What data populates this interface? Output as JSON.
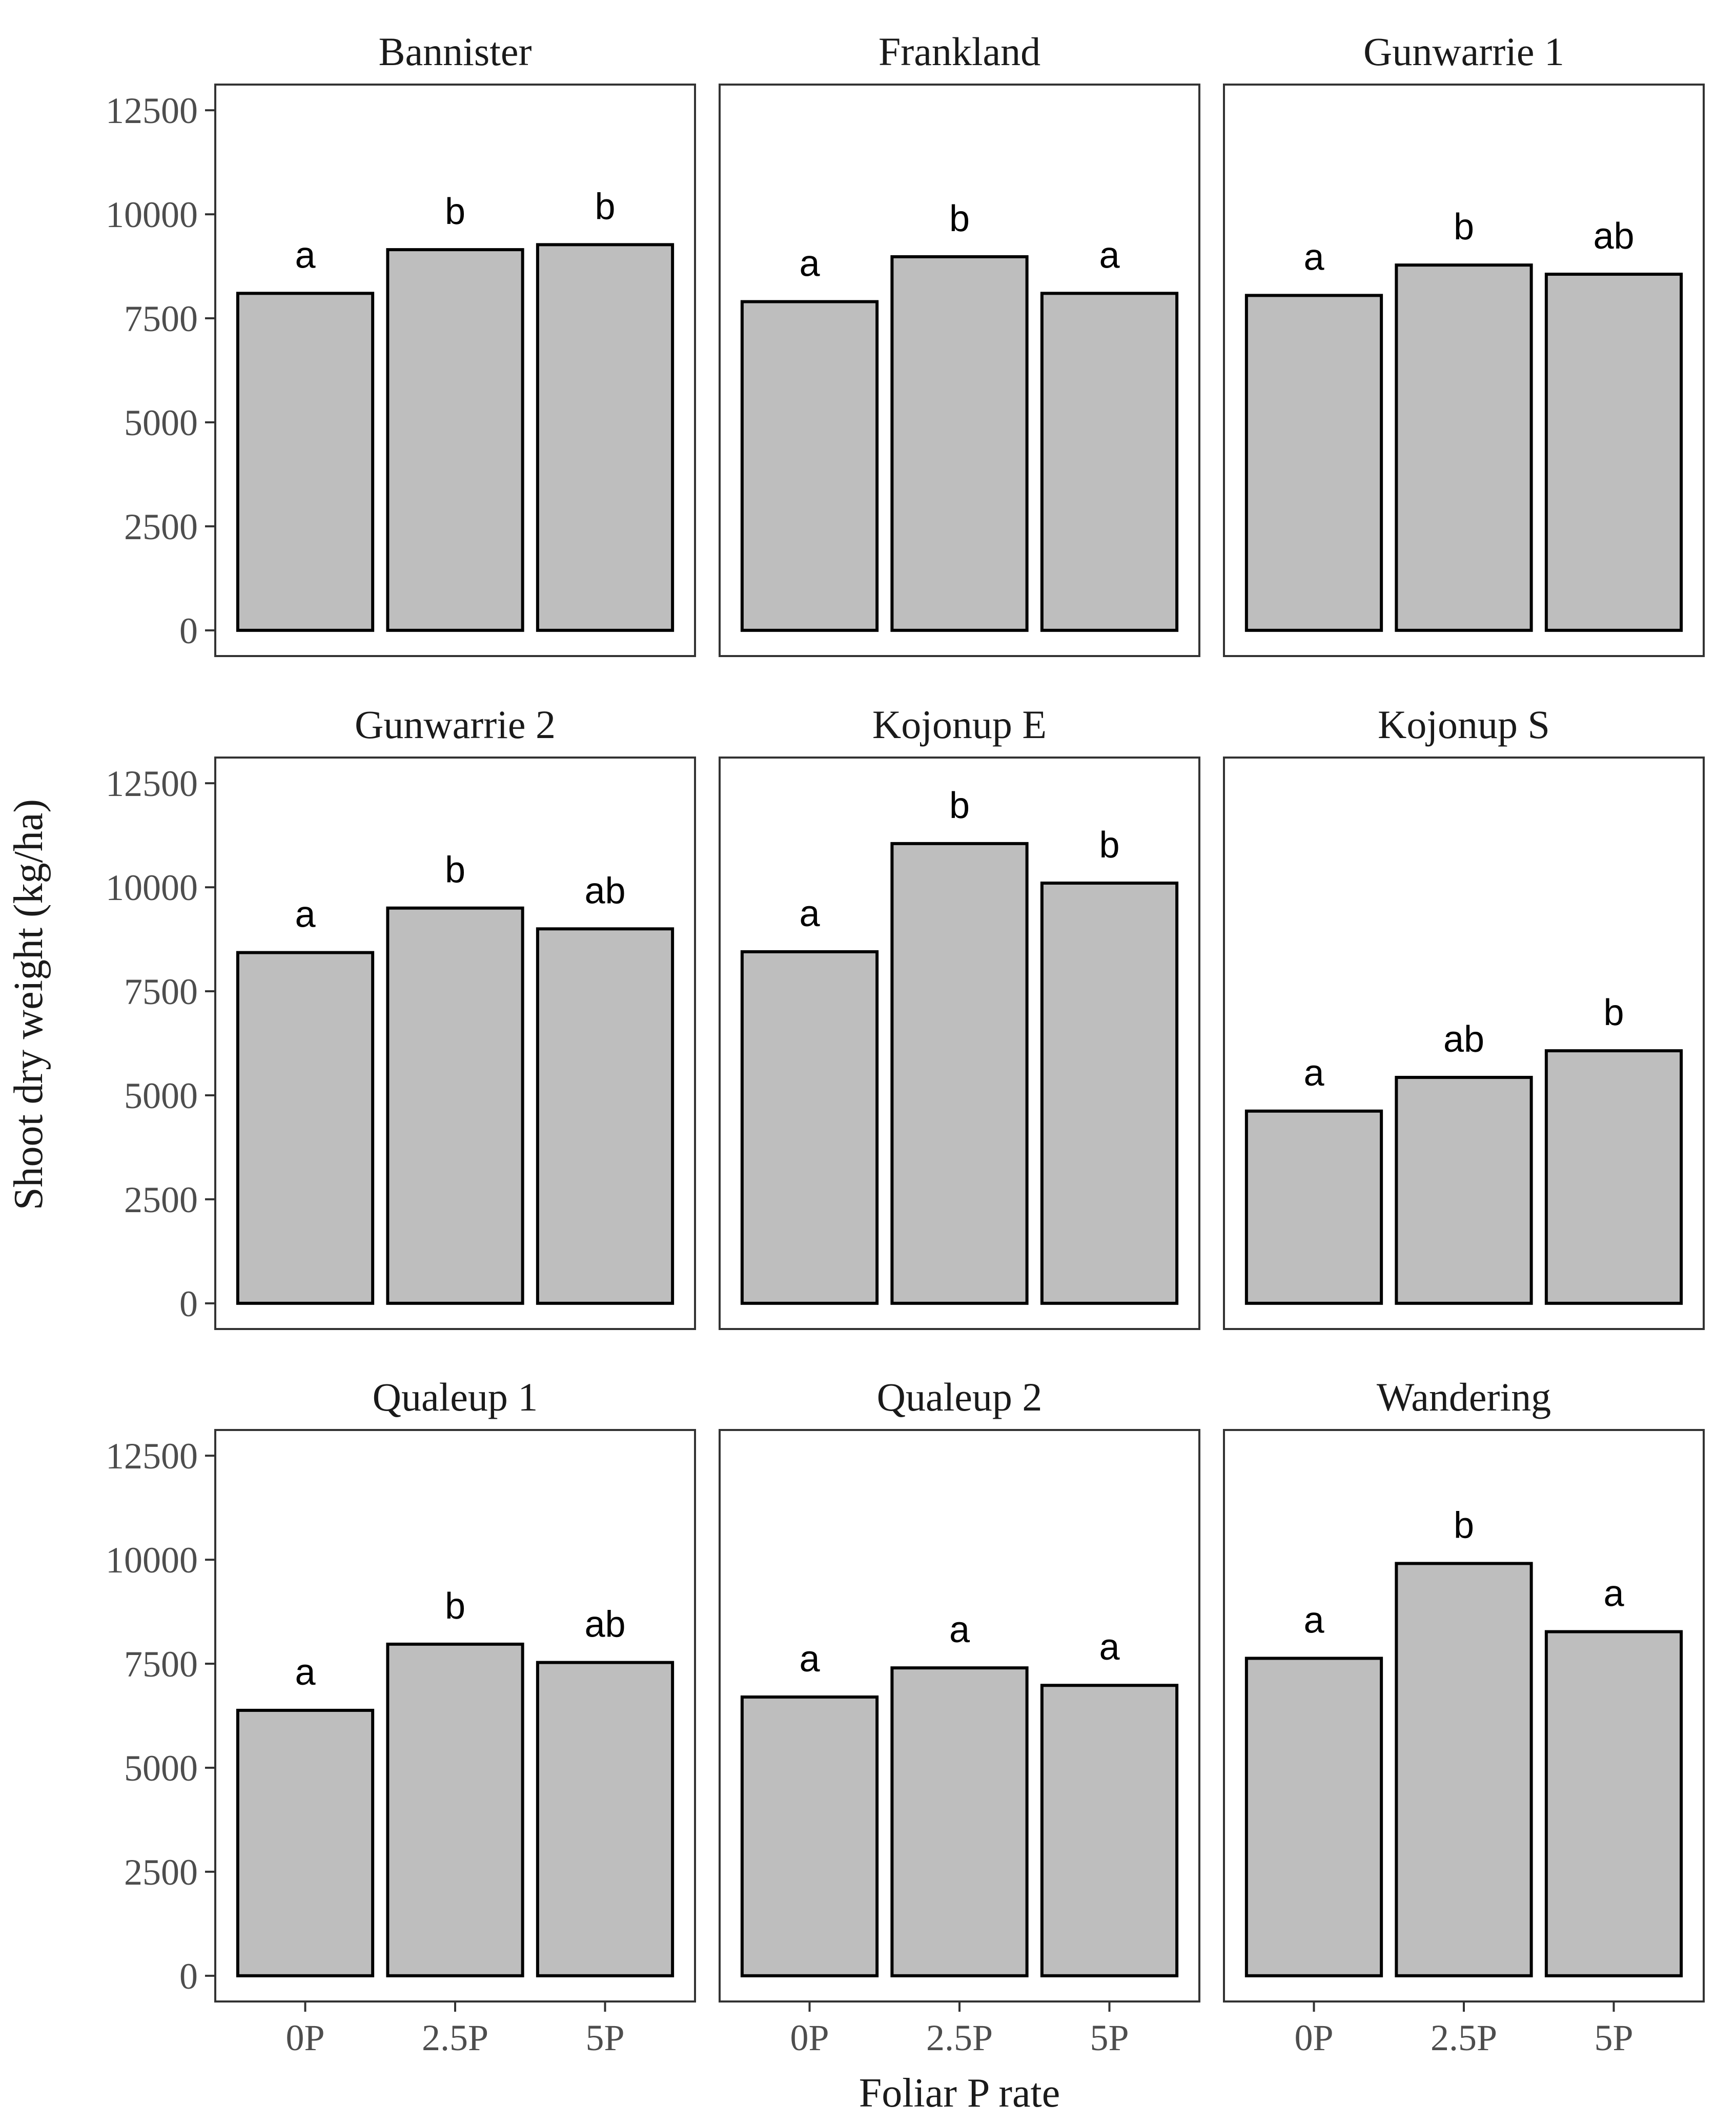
{
  "chart_data": {
    "type": "bar",
    "xlabel": "Foliar P rate",
    "ylabel": "Shoot dry weight (kg/ha)",
    "categories": [
      "0P",
      "2.5P",
      "5P"
    ],
    "ylim": [
      0,
      12500
    ],
    "yticks": [
      0,
      2500,
      5000,
      7500,
      10000,
      12500
    ],
    "ytick_labels": [
      "0",
      "2500",
      "5000",
      "7500",
      "10000",
      "12500"
    ],
    "bar_color": "#bebebe",
    "facets": [
      {
        "title": "Bannister",
        "values": [
          8100,
          9150,
          9270
        ],
        "labels": [
          "a",
          "b",
          "b"
        ]
      },
      {
        "title": "Frankland",
        "values": [
          7900,
          8980,
          8100
        ],
        "labels": [
          "a",
          "b",
          "a"
        ]
      },
      {
        "title": "Gunwarrie 1",
        "values": [
          8050,
          8780,
          8560
        ],
        "labels": [
          "a",
          "b",
          "ab"
        ]
      },
      {
        "title": "Gunwarrie 2",
        "values": [
          8430,
          9500,
          9000
        ],
        "labels": [
          "a",
          "b",
          "ab"
        ]
      },
      {
        "title": "Kojonup E",
        "values": [
          8450,
          11050,
          10100
        ],
        "labels": [
          "a",
          "b",
          "b"
        ]
      },
      {
        "title": "Kojonup S",
        "values": [
          4620,
          5430,
          6070
        ],
        "labels": [
          "a",
          "ab",
          "b"
        ]
      },
      {
        "title": "Qualeup 1",
        "values": [
          6380,
          7970,
          7530
        ],
        "labels": [
          "a",
          "b",
          "ab"
        ]
      },
      {
        "title": "Qualeup 2",
        "values": [
          6700,
          7400,
          6980
        ],
        "labels": [
          "a",
          "a",
          "a"
        ]
      },
      {
        "title": "Wandering",
        "values": [
          7630,
          9910,
          8270
        ],
        "labels": [
          "a",
          "b",
          "a"
        ]
      }
    ]
  }
}
